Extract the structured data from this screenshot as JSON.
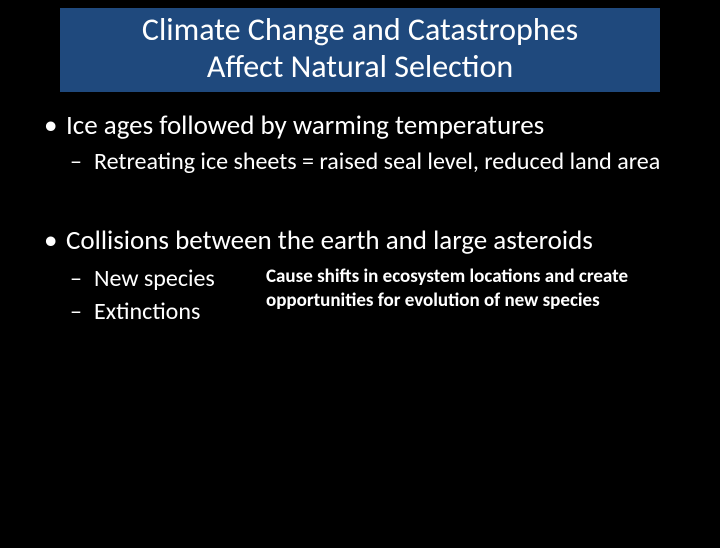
{
  "colors": {
    "background": "#000000",
    "title_bg": "#1f497d",
    "text": "#ffffff"
  },
  "typography": {
    "title_fontsize": 32,
    "bullet1_fontsize": 27,
    "bullet2_fontsize": 24,
    "note_fontsize": 19,
    "note_fontweight": 700,
    "font_family": "Calibri"
  },
  "title": {
    "line1": "Climate Change and Catastrophes",
    "line2": "Affect Natural Selection"
  },
  "bullets": {
    "b1": "Ice ages followed by warming temperatures",
    "b1_sub1": "Retreating ice sheets = raised seal level, reduced land area",
    "b2": "Collisions between the earth and large asteroids",
    "b2_sub1": "New species",
    "b2_sub2": "Extinctions"
  },
  "note": "Cause shifts in ecosystem locations and create opportunities for evolution of new species"
}
